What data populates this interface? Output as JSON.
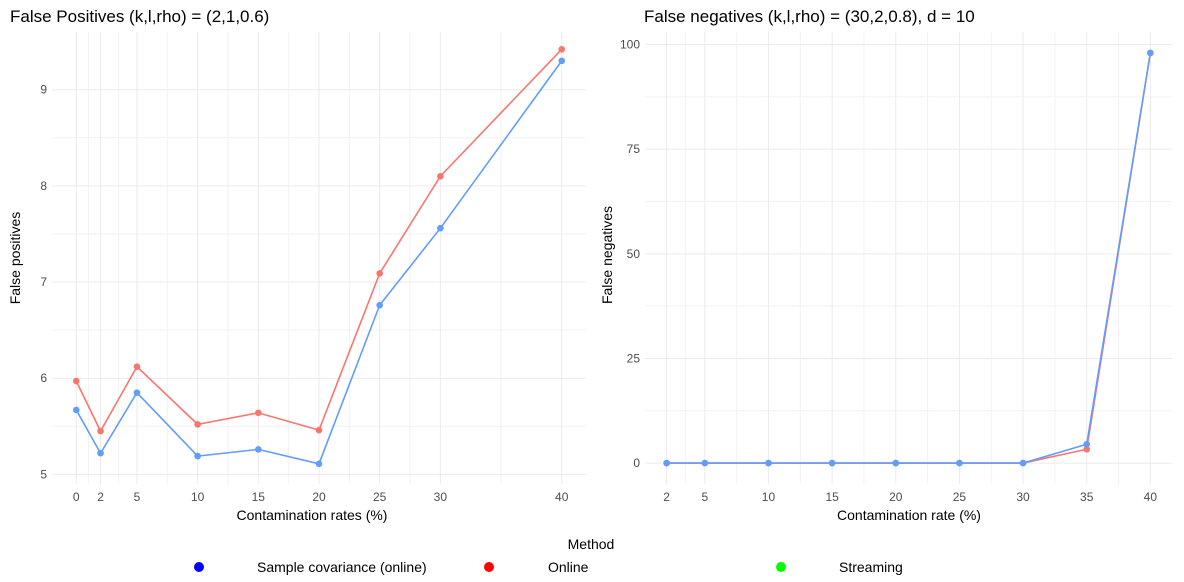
{
  "chart_data": [
    {
      "type": "line",
      "title": "False Positives (k,l,rho) = (2,1,0.6)",
      "xlabel": "Contamination rates (%)",
      "ylabel": "False positives",
      "x": [
        0,
        2,
        5,
        10,
        15,
        20,
        25,
        30,
        40
      ],
      "x_ticks": [
        "0",
        "2",
        "5",
        "10",
        "15",
        "20",
        "25",
        "30",
        "40"
      ],
      "y_ticks": [
        "5",
        "6",
        "7",
        "8",
        "9"
      ],
      "xlim": [
        -2,
        42
      ],
      "ylim": [
        4.9,
        9.6
      ],
      "grid": true,
      "series": [
        {
          "name": "Sample covariance (online)",
          "color": "#619CFF",
          "values": [
            5.67,
            5.22,
            5.85,
            5.19,
            5.26,
            5.11,
            6.76,
            7.56,
            9.3
          ]
        },
        {
          "name": "Online",
          "color": "#F8766D",
          "values": [
            5.97,
            5.45,
            6.12,
            5.52,
            5.64,
            5.46,
            7.09,
            8.1,
            9.42
          ]
        }
      ]
    },
    {
      "type": "line",
      "title": "False negatives (k,l,rho) = (30,2,0.8), d = 10",
      "xlabel": "Contamination rate (%)",
      "ylabel": "False negatives",
      "x": [
        2,
        5,
        10,
        15,
        20,
        25,
        30,
        35,
        40
      ],
      "x_ticks": [
        "2",
        "5",
        "10",
        "15",
        "20",
        "25",
        "30",
        "35",
        "40"
      ],
      "y_ticks": [
        "0",
        "25",
        "50",
        "75",
        "100"
      ],
      "xlim": [
        0.3,
        41.7
      ],
      "ylim": [
        -5,
        103
      ],
      "grid": true,
      "series": [
        {
          "name": "Online",
          "color": "#F8766D",
          "values": [
            0,
            0,
            0,
            0,
            0,
            0,
            0,
            3.3,
            98
          ]
        },
        {
          "name": "Sample covariance (online)",
          "color": "#619CFF",
          "values": [
            0,
            0,
            0,
            0,
            0,
            0,
            0,
            4.5,
            98
          ]
        }
      ]
    }
  ],
  "legend": {
    "title": "Method",
    "placement": "bottom",
    "items": [
      {
        "label": "Sample covariance (online)",
        "color": "#0000FF"
      },
      {
        "label": "Online",
        "color": "#FF0000"
      },
      {
        "label": "Streaming",
        "color": "#00FF00"
      }
    ]
  }
}
